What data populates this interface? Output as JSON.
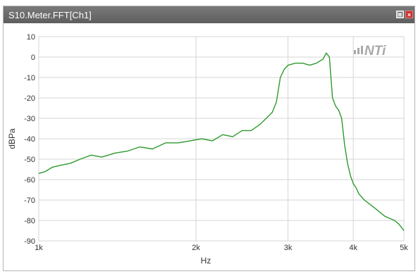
{
  "window": {
    "title": "S10.Meter.FFT[Ch1]",
    "restore_icon": "restore-window-icon",
    "close_icon": "close-icon",
    "close_glyph": "×",
    "restore_glyph": "❐"
  },
  "watermark": "NTi",
  "colors": {
    "titlebar": "#666666",
    "trace": "#2e9a2e",
    "grid": "#d4d4d4",
    "close": "#c9302c"
  },
  "chart_data": {
    "type": "line",
    "xlabel": "Hz",
    "ylabel": "dBPa",
    "x_scale": "log",
    "xlim": [
      1000,
      5000
    ],
    "ylim": [
      -90,
      10
    ],
    "x_ticks": [
      1000,
      2000,
      3000,
      4000,
      5000
    ],
    "x_tick_labels": [
      "1k",
      "2k",
      "3k",
      "4k",
      "5k"
    ],
    "y_ticks": [
      10,
      0,
      -10,
      -20,
      -30,
      -40,
      -50,
      -60,
      -70,
      -80,
      -90
    ],
    "y_tick_labels": [
      "10",
      "0",
      "-10",
      "-20",
      "-30",
      "-40",
      "-50",
      "-60",
      "-70",
      "-80",
      "-90"
    ],
    "grid": true,
    "series": [
      {
        "x": [
          1000,
          1030,
          1060,
          1100,
          1150,
          1200,
          1260,
          1320,
          1400,
          1480,
          1560,
          1650,
          1750,
          1850,
          1950,
          2050,
          2150,
          2250,
          2350,
          2450,
          2550,
          2650,
          2750,
          2800,
          2850,
          2900,
          2950,
          3000,
          3100,
          3200,
          3300,
          3400,
          3500,
          3550,
          3600,
          3650,
          3700,
          3750,
          3800,
          3850,
          3900,
          3950,
          4000,
          4050,
          4100,
          4200,
          4300,
          4400,
          4500,
          4600,
          4700,
          4800,
          4900,
          5000
        ],
        "y": [
          -57,
          -56,
          -54,
          -53,
          -52,
          -50,
          -48,
          -49,
          -47,
          -46,
          -44,
          -45,
          -42,
          -42,
          -41,
          -40,
          -41,
          -38,
          -39,
          -36,
          -36,
          -33,
          -29,
          -27,
          -22,
          -10,
          -6,
          -4,
          -3,
          -3,
          -4,
          -3,
          -1,
          2,
          0,
          -20,
          -24,
          -26,
          -30,
          -43,
          -52,
          -58,
          -62,
          -64,
          -67,
          -70,
          -72,
          -74,
          -76,
          -78,
          -79,
          -80,
          -82,
          -85
        ]
      }
    ]
  }
}
